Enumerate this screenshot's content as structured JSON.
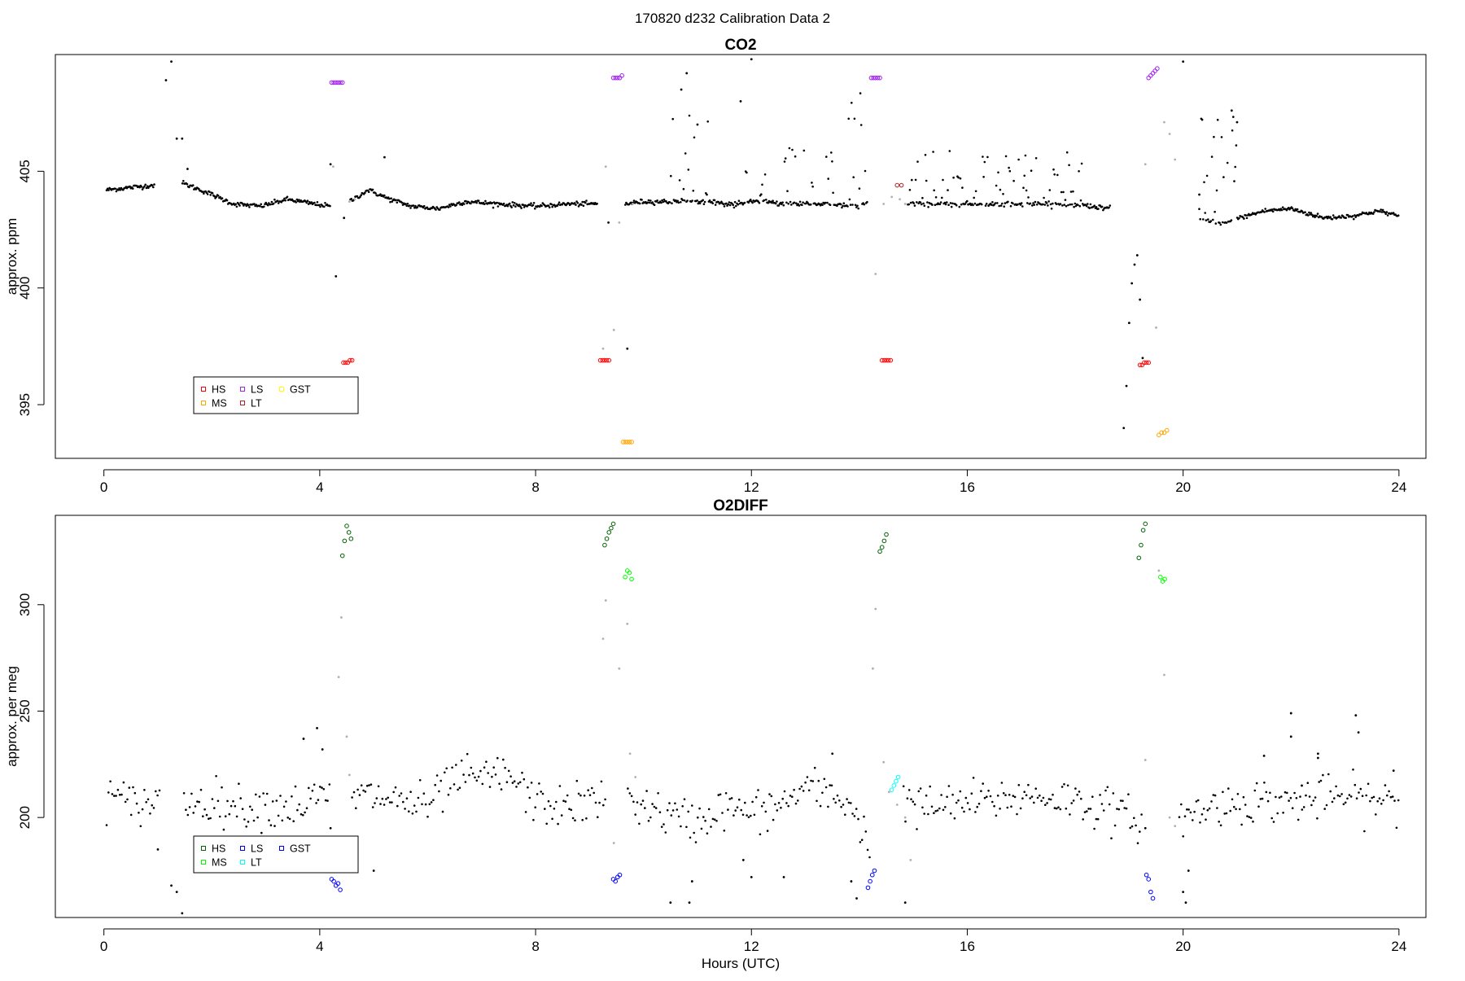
{
  "figure_title": "170820   d232   Calibration Data 2",
  "chart_data": [
    {
      "type": "scatter",
      "title": "CO2",
      "xlabel": "",
      "ylabel": "approx. ppm",
      "xlim": [
        -0.9,
        24.5
      ],
      "ylim": [
        392.7,
        410.0
      ],
      "xticks": [
        0,
        4,
        8,
        12,
        16,
        20,
        24
      ],
      "yticks": [
        395,
        400,
        405
      ],
      "grid": false,
      "legend": {
        "position": "bottom-left",
        "entries": [
          {
            "label": "HS",
            "color": "#ff0000"
          },
          {
            "label": "MS",
            "color": "#ffa500"
          },
          {
            "label": "LS",
            "color": "#a020f0"
          },
          {
            "label": "LT",
            "color": "#b22222"
          },
          {
            "label": "GST",
            "color": "#ffff00"
          }
        ]
      },
      "baseline_trend": {
        "color": "#000000",
        "x": [
          0.05,
          0.9,
          1.45,
          1.9,
          2.4,
          2.9,
          3.4,
          3.9,
          4.2,
          4.55,
          4.9,
          5.3,
          5.7,
          6.2,
          6.7,
          7.3,
          8.0,
          8.6,
          9.2,
          9.65,
          10.0,
          10.5,
          11.1,
          11.6,
          12.2,
          12.6,
          13.1,
          13.4,
          13.8,
          14.2,
          14.9,
          15.5,
          16.2,
          17.0,
          17.7,
          18.3,
          18.7,
          20.3,
          20.7,
          20.9,
          21.5,
          22.0,
          22.6,
          23.2,
          23.6,
          24.0
        ],
        "y": [
          404.2,
          404.4,
          404.5,
          404.1,
          403.6,
          403.5,
          403.8,
          403.6,
          403.5,
          403.7,
          404.2,
          403.8,
          403.5,
          403.4,
          403.7,
          403.6,
          403.5,
          403.6,
          403.6,
          403.6,
          403.7,
          403.7,
          403.7,
          403.6,
          403.7,
          403.6,
          403.6,
          403.6,
          403.5,
          403.6,
          403.6,
          403.6,
          403.6,
          403.6,
          403.6,
          403.5,
          403.4,
          403.0,
          402.7,
          402.9,
          403.3,
          403.4,
          403.0,
          403.1,
          403.3,
          403.1
        ],
        "noise": 0.05
      },
      "excursions": [
        {
          "x": [
            10.5,
            11.2
          ],
          "peak": 407.5,
          "spread": 1.8
        },
        {
          "x": [
            11.85,
            12.3
          ],
          "peak": 405.2,
          "spread": 1.5
        },
        {
          "x": [
            12.55,
            13.55
          ],
          "peak": 406.5,
          "spread": 1.6
        },
        {
          "x": [
            13.8,
            14.3
          ],
          "peak": 408.5,
          "spread": 2.0
        },
        {
          "x": [
            14.9,
            18.2
          ],
          "peak": 405.9,
          "spread": 0.8
        },
        {
          "x": [
            19.5,
            21.0
          ],
          "peak": 407.4,
          "spread": 1.8
        }
      ],
      "scattered_points": {
        "x": [
          1.15,
          1.25,
          1.35,
          1.45,
          1.55,
          4.2,
          4.3,
          4.45,
          5.2,
          9.35,
          9.7,
          10.7,
          10.8,
          11.0,
          11.8,
          12.0,
          18.9,
          18.95,
          19.0,
          19.05,
          19.1,
          19.15,
          19.2,
          19.25,
          20.0,
          20.3,
          20.9,
          21.0
        ],
        "y": [
          408.9,
          409.7,
          406.4,
          406.4,
          405.1,
          405.3,
          400.5,
          403.0,
          405.6,
          402.8,
          397.4,
          408.5,
          409.2,
          407.0,
          408.0,
          409.8,
          394.0,
          395.8,
          398.5,
          400.2,
          401.0,
          401.4,
          399.5,
          397.0,
          409.7,
          404.0,
          407.6,
          407.1
        ]
      },
      "transition_points_gray": {
        "x": [
          4.25,
          4.55,
          4.65,
          9.25,
          9.3,
          9.45,
          9.55,
          9.8,
          14.3,
          14.45,
          14.6,
          14.75,
          14.85,
          19.3,
          19.5,
          19.65,
          19.75,
          19.85
        ],
        "y": [
          405.2,
          403.7,
          403.8,
          397.4,
          405.2,
          398.2,
          402.8,
          403.6,
          400.6,
          403.6,
          403.9,
          403.8,
          403.6,
          405.3,
          398.3,
          407.1,
          406.6,
          405.5
        ]
      },
      "calibration_series": [
        {
          "name": "LS",
          "color": "#a020f0",
          "x": [
            4.22,
            4.26,
            4.3,
            4.34,
            4.38,
            4.42
          ],
          "y": [
            408.8,
            408.8,
            408.8,
            408.8,
            408.8,
            408.8
          ]
        },
        {
          "name": "HS",
          "color": "#ff0000",
          "x": [
            4.44,
            4.48,
            4.52,
            4.56,
            4.6
          ],
          "y": [
            396.8,
            396.8,
            396.8,
            396.9,
            396.9
          ]
        },
        {
          "name": "HS",
          "color": "#ff0000",
          "x": [
            9.2,
            9.24,
            9.28,
            9.32,
            9.36
          ],
          "y": [
            396.9,
            396.9,
            396.9,
            396.9,
            396.9
          ]
        },
        {
          "name": "LS",
          "color": "#a020f0",
          "x": [
            9.44,
            9.48,
            9.52,
            9.56,
            9.6
          ],
          "y": [
            409.0,
            409.0,
            409.0,
            409.0,
            409.1
          ]
        },
        {
          "name": "MS",
          "color": "#ffa500",
          "x": [
            9.62,
            9.66,
            9.7,
            9.74,
            9.78
          ],
          "y": [
            393.4,
            393.4,
            393.4,
            393.4,
            393.4
          ]
        },
        {
          "name": "LS",
          "color": "#a020f0",
          "x": [
            14.22,
            14.26,
            14.3,
            14.34,
            14.38
          ],
          "y": [
            409.0,
            409.0,
            409.0,
            409.0,
            409.0
          ]
        },
        {
          "name": "HS",
          "color": "#ff0000",
          "x": [
            14.42,
            14.46,
            14.5,
            14.54,
            14.58
          ],
          "y": [
            396.9,
            396.9,
            396.9,
            396.9,
            396.9
          ]
        },
        {
          "name": "LT",
          "color": "#b22222",
          "x": [
            14.7,
            14.78
          ],
          "y": [
            404.4,
            404.4
          ]
        },
        {
          "name": "HS",
          "color": "#ff0000",
          "x": [
            19.2,
            19.24,
            19.28,
            19.32,
            19.36
          ],
          "y": [
            396.7,
            396.7,
            396.8,
            396.8,
            396.8
          ]
        },
        {
          "name": "LS",
          "color": "#a020f0",
          "x": [
            19.36,
            19.4,
            19.44,
            19.48,
            19.52
          ],
          "y": [
            409.0,
            409.1,
            409.2,
            409.3,
            409.4
          ]
        },
        {
          "name": "MS",
          "color": "#ffa500",
          "x": [
            19.55,
            19.6,
            19.65,
            19.7
          ],
          "y": [
            393.7,
            393.8,
            393.8,
            393.9
          ]
        }
      ]
    },
    {
      "type": "scatter",
      "title": "O2DIFF",
      "xlabel": "Hours (UTC)",
      "ylabel": "approx. per meg",
      "xlim": [
        -0.9,
        24.5
      ],
      "ylim": [
        153,
        342
      ],
      "xticks": [
        0,
        4,
        8,
        12,
        16,
        20,
        24
      ],
      "yticks": [
        200,
        250,
        300
      ],
      "grid": false,
      "legend": {
        "position": "bottom-left",
        "entries": [
          {
            "label": "HS",
            "color": "#006400"
          },
          {
            "label": "MS",
            "color": "#00ff00"
          },
          {
            "label": "LS",
            "color": "#0000ff"
          },
          {
            "label": "LT",
            "color": "#00ffff"
          },
          {
            "label": "GST",
            "color": "#0000ff"
          }
        ]
      },
      "baseline_trend": {
        "color": "#000000",
        "x": [
          0.05,
          0.5,
          1.0,
          1.5,
          2.0,
          2.5,
          3.0,
          3.5,
          4.0,
          4.6,
          5.0,
          5.5,
          6.0,
          6.5,
          7.0,
          7.5,
          8.0,
          8.5,
          9.0,
          9.6,
          10.0,
          10.5,
          11.0,
          11.5,
          12.0,
          12.5,
          13.0,
          13.5,
          13.8,
          14.2,
          14.8,
          15.0,
          15.5,
          16.0,
          16.5,
          17.0,
          17.5,
          18.0,
          18.5,
          19.0,
          19.8,
          20.0,
          20.5,
          21.0,
          21.5,
          22.0,
          22.5,
          23.0,
          23.5,
          24.0
        ],
        "y": [
          211,
          206,
          208,
          207,
          208,
          205,
          206,
          205,
          209,
          210,
          210,
          208,
          205,
          218,
          218,
          220,
          207,
          205,
          207,
          210,
          206,
          200,
          198,
          205,
          202,
          205,
          214,
          210,
          208,
          186,
          211,
          205,
          205,
          207,
          208,
          210,
          210,
          208,
          205,
          200,
          195,
          200,
          205,
          207,
          208,
          207,
          209,
          210,
          208,
          207
        ],
        "noise": 5
      },
      "scattered_points": {
        "x": [
          1.0,
          1.25,
          1.35,
          1.45,
          3.7,
          3.95,
          4.05,
          4.2,
          5.0,
          10.5,
          10.85,
          10.9,
          11.85,
          12.0,
          12.6,
          13.5,
          13.85,
          13.95,
          14.85,
          19.3,
          20.0,
          20.05,
          20.1,
          21.5,
          22.0,
          22.0,
          22.2,
          22.5,
          22.5,
          23.2,
          23.25,
          23.9
        ],
        "y": [
          185,
          168,
          165,
          155,
          237,
          242,
          232,
          195,
          175,
          160,
          160,
          170,
          180,
          172,
          172,
          230,
          170,
          162,
          160,
          195,
          165,
          160,
          175,
          229,
          249,
          238,
          215,
          228,
          230,
          248,
          240,
          222
        ]
      },
      "transition_points_gray": {
        "x": [
          4.35,
          4.4,
          4.5,
          4.55,
          9.25,
          9.3,
          9.45,
          9.55,
          9.7,
          9.75,
          9.85,
          14.25,
          14.3,
          14.45,
          14.55,
          14.7,
          14.85,
          14.95,
          19.3,
          19.55,
          19.65,
          19.75,
          19.85
        ],
        "y": [
          266,
          294,
          238,
          220,
          284,
          302,
          188,
          270,
          291,
          230,
          219,
          270,
          298,
          226,
          212,
          206,
          200,
          180,
          227,
          316,
          267,
          200,
          196
        ]
      },
      "calibration_series": [
        {
          "name": "LS",
          "color": "#0000ff",
          "x": [
            4.22,
            4.26,
            4.3,
            4.34,
            4.38
          ],
          "y": [
            171,
            170,
            168,
            169,
            166
          ]
        },
        {
          "name": "HS",
          "color": "#006400",
          "x": [
            4.42,
            4.46,
            4.5,
            4.54,
            4.58
          ],
          "y": [
            323,
            330,
            337,
            334,
            331
          ]
        },
        {
          "name": "HS",
          "color": "#006400",
          "x": [
            9.28,
            9.32,
            9.36,
            9.4,
            9.44
          ],
          "y": [
            328,
            331,
            334,
            336,
            338
          ]
        },
        {
          "name": "LS",
          "color": "#0000ff",
          "x": [
            9.44,
            9.48,
            9.52,
            9.56
          ],
          "y": [
            171,
            170,
            172,
            173
          ]
        },
        {
          "name": "MS",
          "color": "#00ff00",
          "x": [
            9.66,
            9.7,
            9.74,
            9.78
          ],
          "y": [
            313,
            316,
            315,
            312
          ]
        },
        {
          "name": "LS",
          "color": "#0000ff",
          "x": [
            14.16,
            14.2,
            14.24,
            14.28
          ],
          "y": [
            167,
            170,
            173,
            175
          ]
        },
        {
          "name": "HS",
          "color": "#006400",
          "x": [
            14.38,
            14.42,
            14.46,
            14.5
          ],
          "y": [
            325,
            327,
            330,
            333
          ]
        },
        {
          "name": "LT",
          "color": "#00ffff",
          "x": [
            14.6,
            14.64,
            14.68,
            14.72
          ],
          "y": [
            213,
            215,
            217,
            219
          ]
        },
        {
          "name": "HS",
          "color": "#006400",
          "x": [
            19.18,
            19.22,
            19.26,
            19.3
          ],
          "y": [
            322,
            328,
            335,
            338
          ]
        },
        {
          "name": "LS",
          "color": "#0000ff",
          "x": [
            19.32,
            19.36,
            19.4,
            19.44
          ],
          "y": [
            173,
            171,
            165,
            162
          ]
        },
        {
          "name": "MS",
          "color": "#00ff00",
          "x": [
            19.58,
            19.62,
            19.66
          ],
          "y": [
            313,
            311,
            312
          ]
        }
      ]
    }
  ]
}
